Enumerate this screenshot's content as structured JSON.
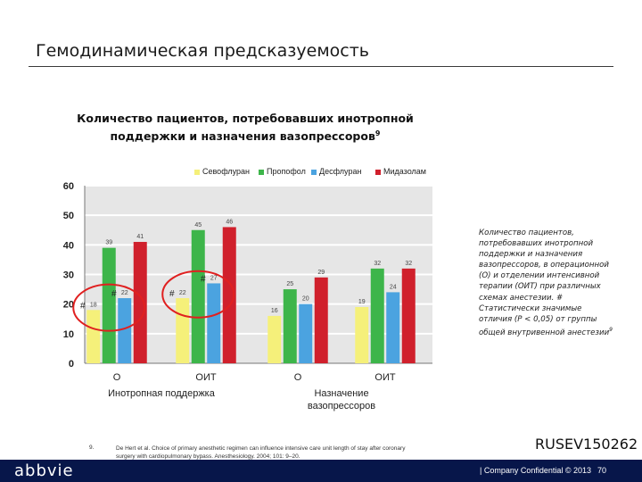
{
  "slide": {
    "title": "Гемодинамическая предсказуемость",
    "code": "RUSEV150262",
    "footnote_number": "9.",
    "footnote_text": "De Hert et al. Choice of primary anesthetic regimen can influence intensive care unit length of stay after coronary surgery with cardiopulmonary bypass. Anesthesiology. 2004; 101: 9–20.",
    "logo": "abbvie",
    "confidential": "| Company Confidential © 2013",
    "page_number": "70"
  },
  "chart_title": {
    "text": "Количество пациентов, потребовавших инотропной поддержки и назначения вазопрессоров",
    "sup": "9"
  },
  "side_note": {
    "text": "Количество пациентов, потребовавших инотропной поддержки и назначения вазопрессоров, в операционной (О) и отделении интенсивной терапии (ОИТ) при различных схемах анестезии. # Статистически значимые отличия (P < 0,05) от группы общей внутривенной анестезии",
    "sup": "9"
  },
  "chart_data": {
    "type": "bar",
    "categories": [
      "О",
      "ОИТ",
      "О",
      "ОИТ"
    ],
    "groups": [
      "Инотропная поддержка",
      "Назначение вазопрессоров"
    ],
    "series": [
      {
        "name": "Севофлуран",
        "values": [
          18,
          22,
          16,
          19
        ],
        "color": "#f5f07a"
      },
      {
        "name": "Пропофол",
        "values": [
          39,
          45,
          25,
          32
        ],
        "color": "#3db54a"
      },
      {
        "name": "Десфлуран",
        "values": [
          22,
          27,
          20,
          24
        ],
        "color": "#4ba3e0"
      },
      {
        "name": "Мидазолам",
        "values": [
          41,
          46,
          29,
          32
        ],
        "color": "#d0202c"
      }
    ],
    "significance": [
      {
        "category": 0,
        "series": 0,
        "mark": "#"
      },
      {
        "category": 0,
        "series": 2,
        "mark": "#"
      },
      {
        "category": 1,
        "series": 0,
        "mark": "#"
      },
      {
        "category": 1,
        "series": 2,
        "mark": "#"
      }
    ],
    "yticks": [
      0,
      10,
      20,
      30,
      40,
      50,
      60
    ],
    "ylim": [
      0,
      60
    ],
    "grid": true,
    "legend": "top",
    "highlight_color": "#e02020"
  }
}
